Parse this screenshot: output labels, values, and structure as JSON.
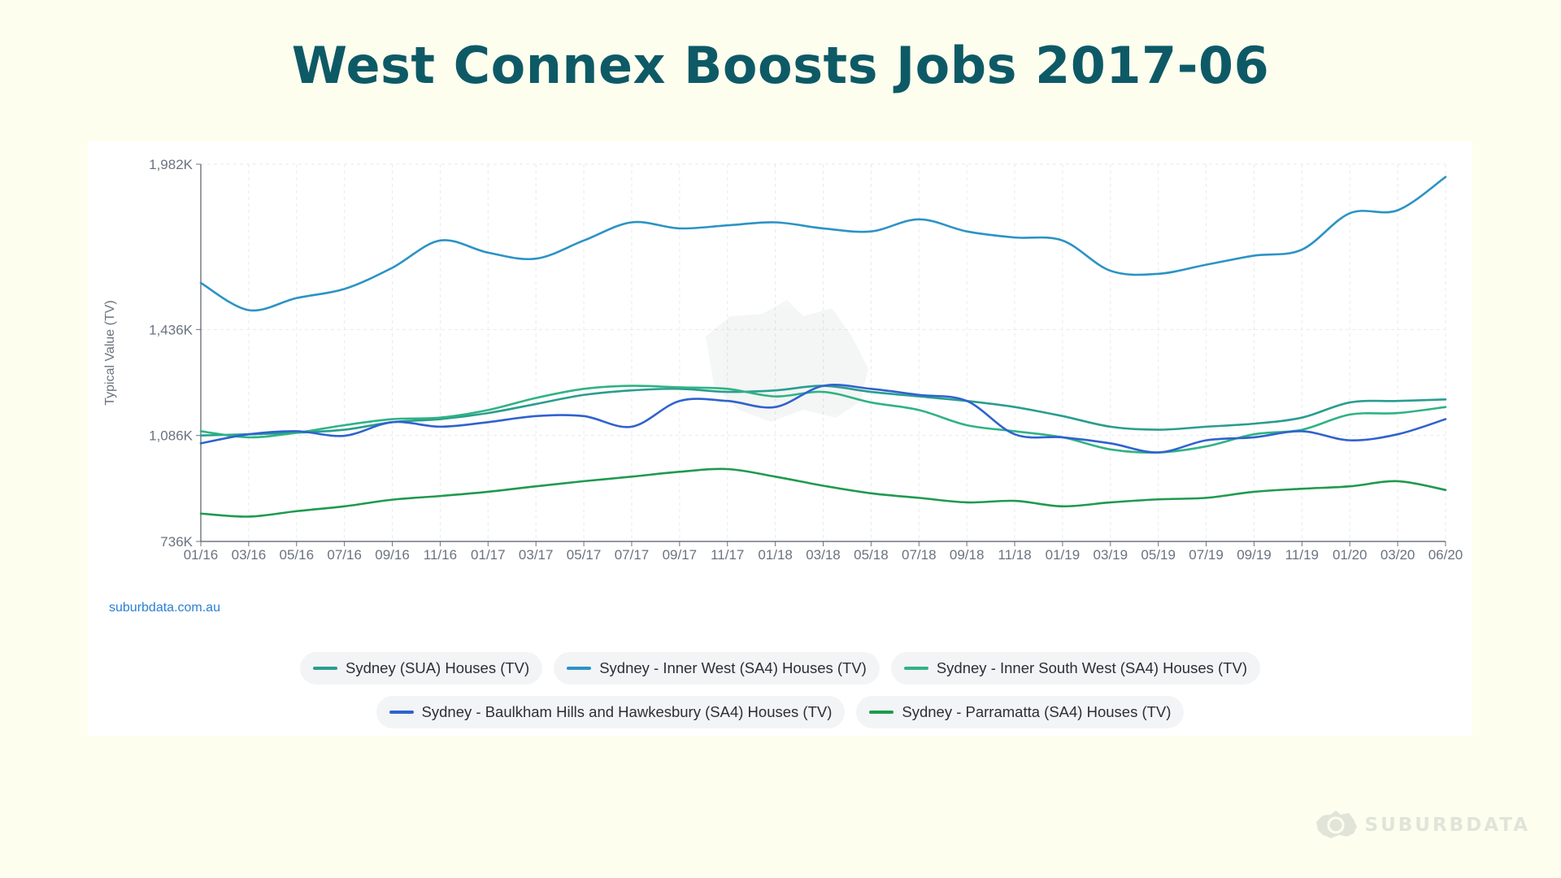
{
  "title": "West Connex Boosts Jobs 2017-06",
  "source": "suburbdata.com.au",
  "brand": "SUBURBDATA",
  "chart_data": {
    "type": "line",
    "ylabel": "Typical Value (TV)",
    "xlabel": "",
    "ylim": [
      736000,
      1982000
    ],
    "yticks": [
      "1,982K",
      "1,436K",
      "1,086K",
      "736K"
    ],
    "ytick_values": [
      1982000,
      1436000,
      1086000,
      736000
    ],
    "x": [
      "01/16",
      "03/16",
      "05/16",
      "07/16",
      "09/16",
      "11/16",
      "01/17",
      "03/17",
      "05/17",
      "07/17",
      "09/17",
      "11/17",
      "01/18",
      "03/18",
      "05/18",
      "07/18",
      "09/18",
      "11/18",
      "01/19",
      "03/19",
      "05/19",
      "07/19",
      "09/19",
      "11/19",
      "01/20",
      "03/20",
      "06/20"
    ],
    "grid": true,
    "series": [
      {
        "name": "Sydney (SUA) Houses (TV)",
        "color": "#2a9d8f",
        "values": [
          1086000,
          1090000,
          1095000,
          1105000,
          1130000,
          1140000,
          1160000,
          1190000,
          1220000,
          1235000,
          1240000,
          1230000,
          1235000,
          1250000,
          1230000,
          1215000,
          1200000,
          1180000,
          1150000,
          1115000,
          1105000,
          1115000,
          1125000,
          1145000,
          1195000,
          1200000,
          1205000
        ]
      },
      {
        "name": "Sydney - Inner West (SA4) Houses (TV)",
        "color": "#2b93c5",
        "values": [
          1590000,
          1500000,
          1540000,
          1570000,
          1640000,
          1730000,
          1690000,
          1670000,
          1730000,
          1790000,
          1770000,
          1780000,
          1790000,
          1770000,
          1760000,
          1800000,
          1760000,
          1740000,
          1730000,
          1630000,
          1620000,
          1650000,
          1680000,
          1700000,
          1820000,
          1830000,
          1940000
        ]
      },
      {
        "name": "Sydney - Inner South West (SA4) Houses (TV)",
        "color": "#2fb383",
        "values": [
          1100000,
          1080000,
          1095000,
          1120000,
          1140000,
          1145000,
          1170000,
          1210000,
          1240000,
          1250000,
          1245000,
          1240000,
          1215000,
          1230000,
          1195000,
          1170000,
          1120000,
          1100000,
          1080000,
          1040000,
          1030000,
          1050000,
          1090000,
          1105000,
          1155000,
          1160000,
          1180000
        ]
      },
      {
        "name": "Sydney - Baulkham Hills and Hawkesbury (SA4) Houses (TV)",
        "color": "#2f62cf",
        "values": [
          1060000,
          1090000,
          1100000,
          1085000,
          1130000,
          1115000,
          1130000,
          1150000,
          1150000,
          1115000,
          1200000,
          1200000,
          1180000,
          1250000,
          1240000,
          1220000,
          1200000,
          1090000,
          1080000,
          1060000,
          1030000,
          1070000,
          1080000,
          1100000,
          1070000,
          1090000,
          1140000
        ]
      },
      {
        "name": "Sydney - Parramatta (SA4) Houses (TV)",
        "color": "#1f9a4e",
        "values": [
          828000,
          818000,
          836000,
          852000,
          874000,
          886000,
          900000,
          918000,
          935000,
          950000,
          966000,
          975000,
          950000,
          920000,
          895000,
          880000,
          865000,
          870000,
          852000,
          865000,
          875000,
          880000,
          900000,
          910000,
          918000,
          935000,
          906000
        ]
      }
    ]
  }
}
